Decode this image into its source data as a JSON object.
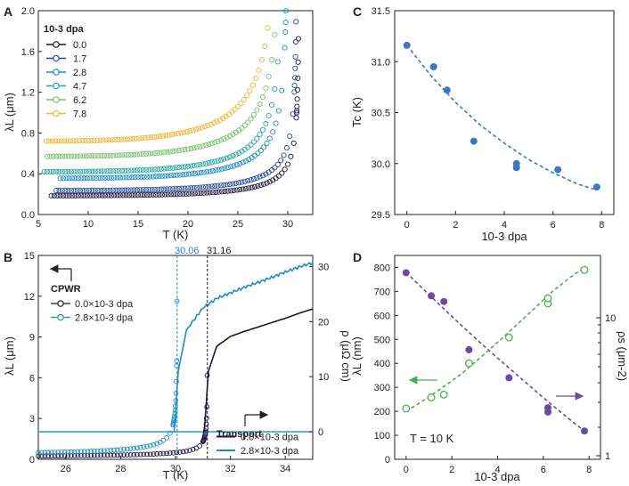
{
  "panel_letters": [
    "A",
    "B",
    "C",
    "D"
  ],
  "colors": {
    "0.0": "#1c1640",
    "1.7": "#27479a",
    "2.8": "#1f8cc4",
    "4.7": "#27a5a0",
    "6.2": "#7dbf72",
    "7.8": "#f0b53a",
    "blue_points": "#3b78bf",
    "purple": "#6a4aa0",
    "green": "#4caf50",
    "transport_black": "#1c1640",
    "transport_blue": "#1f8cc4"
  },
  "chart_data": [
    {
      "panel": "A",
      "type": "scatter",
      "xlabel": "T (K)",
      "ylabel": "λL (μm)",
      "xlim": [
        5,
        32.5
      ],
      "ylim": [
        0,
        2.0
      ],
      "xticks": [
        "5",
        "10",
        "15",
        "20",
        "25",
        "30"
      ],
      "yticks": [
        "0.0",
        "0.4",
        "0.8",
        "1.2",
        "1.6",
        "2.0"
      ],
      "legend_title": "10-3 dpa",
      "legend_position": "top-left",
      "series": [
        {
          "name": "0.0",
          "lam0": 0.185,
          "tc": 31.16,
          "tstart": 6.3
        },
        {
          "name": "1.7",
          "lam0": 0.235,
          "tc": 30.95,
          "tstart": 6.8
        },
        {
          "name": "2.8",
          "lam0": 0.355,
          "tc": 30.06,
          "tstart": 7.2
        },
        {
          "name": "4.7",
          "lam0": 0.42,
          "tc": 29.6,
          "tstart": 5.6
        },
        {
          "name": "6.2",
          "lam0": 0.57,
          "tc": 29.5,
          "tstart": 5.9
        },
        {
          "name": "7.8",
          "lam0": 0.72,
          "tc": 29.2,
          "tstart": 5.8
        }
      ]
    },
    {
      "panel": "B",
      "type": "scatter+line",
      "xlabel": "T (K)",
      "ylabel_left": "λL (μm)",
      "ylabel_right": "ρ (μΩ cm)",
      "xlim": [
        25,
        35
      ],
      "ylim_left": [
        0,
        15
      ],
      "ylim_right": [
        -5,
        32
      ],
      "xticks": [
        "26",
        "28",
        "30",
        "32",
        "34"
      ],
      "yticks_left": [
        "0",
        "3",
        "6",
        "9",
        "12",
        "15"
      ],
      "yticks_right": [
        "0",
        "10",
        "20",
        "30"
      ],
      "cpwr_label": "CPWR",
      "transport_label": "Transport",
      "cpwr_legend": [
        "0.0×10-3 dpa",
        "2.8×10-3 dpa"
      ],
      "transport_legend": [
        "0.0×10-3 dpa",
        "2.8×10-3 dpa"
      ],
      "tc_labels": [
        "30.06",
        "31.16"
      ],
      "tc_values": [
        30.06,
        31.16
      ],
      "cpwr_series": [
        {
          "name": "0.0×10-3 dpa",
          "lam0": 0.185,
          "tc": 31.16
        },
        {
          "name": "2.8×10-3 dpa",
          "lam0": 0.355,
          "tc": 30.06
        }
      ],
      "transport_series": [
        {
          "name": "0.0×10-3 dpa",
          "tc": 31.05,
          "x": [
            31.05,
            31.2,
            31.5,
            32.0,
            32.5,
            33.0,
            33.5,
            34.0,
            34.5,
            35.0
          ],
          "y": [
            0,
            11,
            15.5,
            17.3,
            18.2,
            19.0,
            19.8,
            20.6,
            21.5,
            22.3
          ]
        },
        {
          "name": "2.8×10-3 dpa",
          "tc": 29.95,
          "x": [
            29.95,
            30.1,
            30.4,
            31.0,
            31.5,
            32.0,
            32.5,
            33.0,
            33.5,
            34.0,
            34.5,
            35.0
          ],
          "y": [
            0,
            11,
            18.5,
            22.5,
            24.2,
            25.2,
            26.2,
            27.1,
            28.0,
            29.0,
            29.9,
            30.7
          ]
        }
      ]
    },
    {
      "panel": "C",
      "type": "scatter",
      "xlabel": "10-3 dpa",
      "ylabel": "Tc (K)",
      "xlim": [
        -0.5,
        8.5
      ],
      "ylim": [
        29.5,
        31.5
      ],
      "xticks": [
        "0",
        "2",
        "4",
        "6",
        "8"
      ],
      "yticks": [
        "29.5",
        "30.0",
        "30.5",
        "31.0",
        "31.5"
      ],
      "x": [
        0.0,
        1.1,
        1.65,
        2.75,
        4.5,
        4.5,
        6.2,
        7.8
      ],
      "y": [
        31.16,
        30.95,
        30.72,
        30.22,
        30.0,
        29.96,
        29.94,
        29.77
      ],
      "fit_x": [
        0,
        1,
        2,
        3,
        4,
        5,
        6,
        7,
        7.8
      ],
      "fit_y": [
        31.16,
        30.86,
        30.6,
        30.38,
        30.2,
        30.04,
        29.91,
        29.8,
        29.74
      ]
    },
    {
      "panel": "D",
      "type": "scatter",
      "xlabel": "10-3 dpa",
      "ylabel_left": "λL (nm)",
      "ylabel_right": "ρs (μm-2)",
      "xlim": [
        -0.5,
        8.5
      ],
      "ylim_left": [
        0,
        850
      ],
      "yticks_left": [
        "0",
        "100",
        "200",
        "300",
        "400",
        "500",
        "600",
        "700",
        "800"
      ],
      "xticks": [
        "0",
        "2",
        "4",
        "6",
        "8"
      ],
      "right_axis_scale": "log",
      "right_axis_labels": [
        "1",
        "10"
      ],
      "annotation": "T = 10 K",
      "lambda_series": {
        "x": [
          0.0,
          1.1,
          1.65,
          2.75,
          4.5,
          6.2,
          6.2,
          7.8
        ],
        "y": [
          778,
          682,
          658,
          457,
          340,
          215,
          197,
          118
        ],
        "fit_y": [
          780,
          705,
          632,
          560,
          490,
          422,
          356,
          290,
          225,
          163,
          118
        ]
      },
      "rho_s_series": {
        "x": [
          0.0,
          1.1,
          1.65,
          2.75,
          4.5,
          6.2,
          6.2,
          7.8
        ],
        "y_plotted_nm_scale": [
          212,
          258,
          270,
          400,
          508,
          650,
          672,
          790
        ],
        "fit_y": [
          200,
          248,
          300,
          355,
          420,
          488,
          557,
          628,
          700,
          760,
          800
        ]
      },
      "fit_x": [
        0,
        0.8,
        1.6,
        2.4,
        3.2,
        4.0,
        4.8,
        5.6,
        6.4,
        7.2,
        7.8
      ]
    }
  ]
}
